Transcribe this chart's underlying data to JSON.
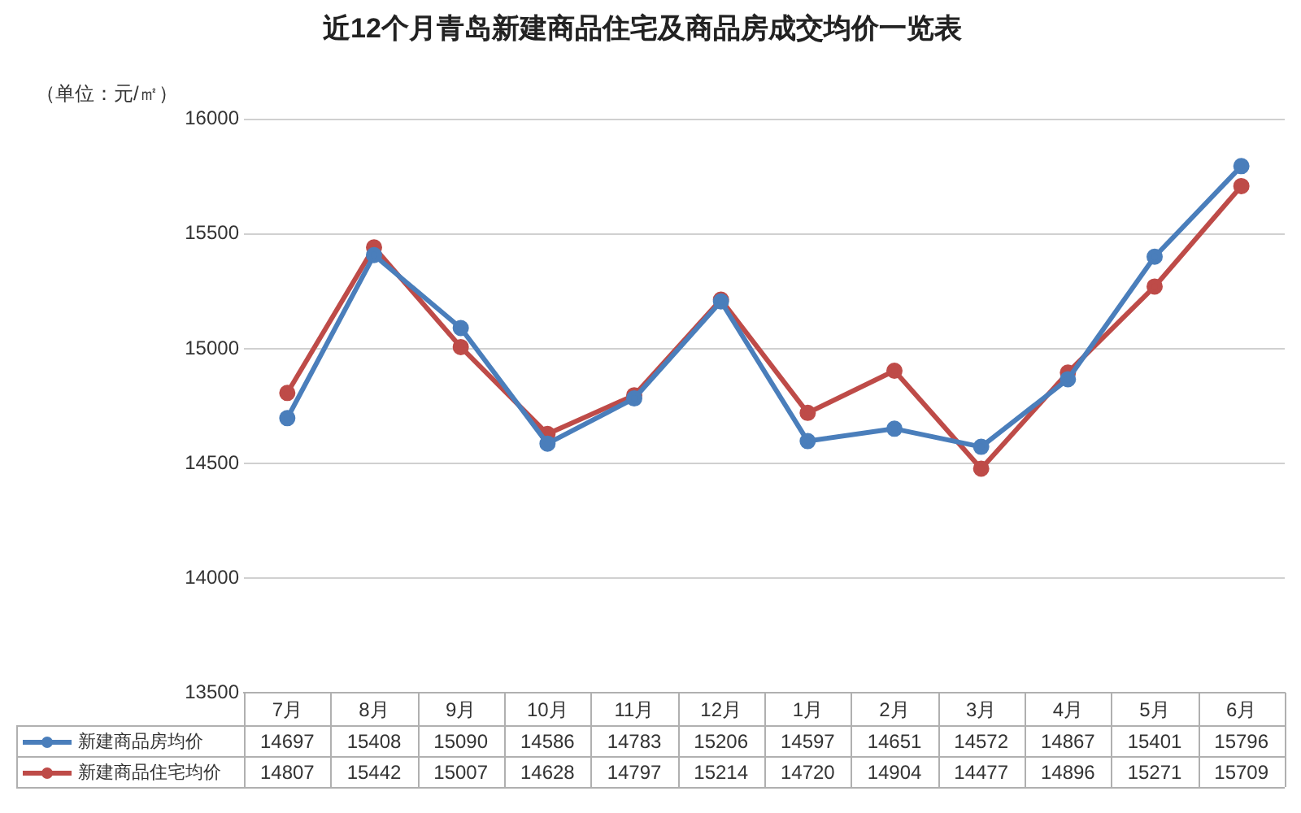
{
  "chart_data": {
    "type": "line",
    "title": "近12个月青岛新建商品住宅及商品房成交均价一览表",
    "ylabel": "（单位：元/㎡）",
    "categories": [
      "7月",
      "8月",
      "9月",
      "10月",
      "11月",
      "12月",
      "1月",
      "2月",
      "3月",
      "4月",
      "5月",
      "6月"
    ],
    "series": [
      {
        "name": "新建商品房均价",
        "color": "#4a7ebb",
        "values": [
          14697,
          15408,
          15090,
          14586,
          14783,
          15206,
          14597,
          14651,
          14572,
          14867,
          15401,
          15796
        ]
      },
      {
        "name": "新建商品住宅均价",
        "color": "#be4b48",
        "values": [
          14807,
          15442,
          15007,
          14628,
          14797,
          15214,
          14720,
          14904,
          14477,
          14896,
          15271,
          15709
        ]
      }
    ],
    "ylim": [
      13500,
      16000
    ],
    "yticks": [
      13500,
      14000,
      14500,
      15000,
      15500,
      16000
    ],
    "grid": "y",
    "marker": "circle",
    "line_style": "solid",
    "legend": "bottom",
    "data_labels": true
  }
}
